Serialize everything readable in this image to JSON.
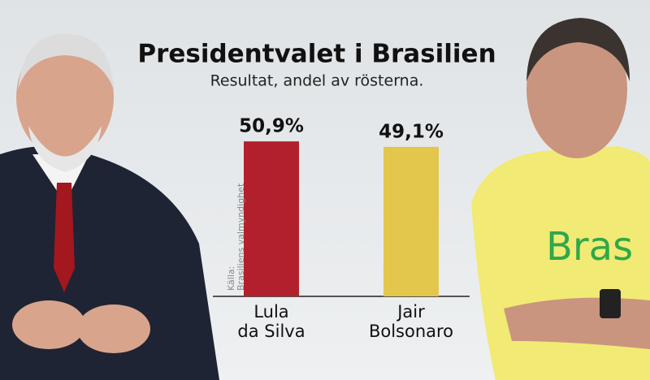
{
  "chart_data": {
    "type": "bar",
    "title": "Presidentvalet i Brasilien",
    "subtitle": "Resultat, andel av rösterna.",
    "source": "Källa:\nBrasiliens valmyndighet",
    "categories": [
      "Lula\nda Silva",
      "Jair\nBolsonaro"
    ],
    "values": [
      50.9,
      49.1
    ],
    "value_labels": [
      "50,9%",
      "49,1%"
    ],
    "colors": [
      "#b3202d",
      "#e3c64c"
    ]
  }
}
